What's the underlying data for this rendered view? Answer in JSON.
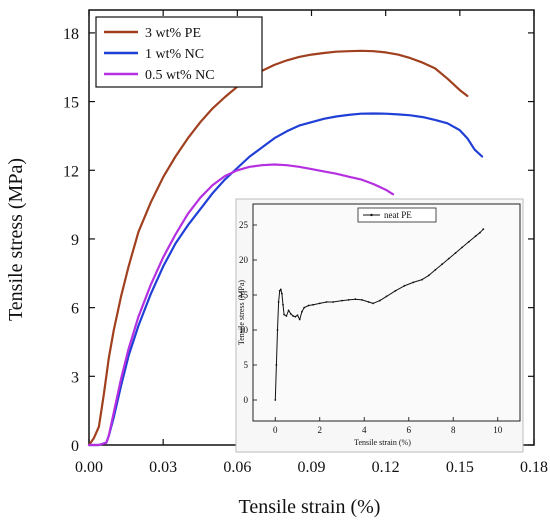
{
  "chart_data": [
    {
      "type": "line",
      "xlabel": "Tensile strain (%)",
      "ylabel": "Tensile stress (MPa)",
      "xlim": [
        0,
        0.18
      ],
      "ylim": [
        0,
        19
      ],
      "xticks": [
        0.0,
        0.03,
        0.06,
        0.09,
        0.12,
        0.15,
        0.18
      ],
      "xtick_labels": [
        "0.00",
        "0.03",
        "0.06",
        "0.09",
        "0.12",
        "0.15",
        "0.18"
      ],
      "yticks": [
        0,
        3,
        6,
        9,
        12,
        15,
        18
      ],
      "ytick_labels": [
        "0",
        "3",
        "6",
        "9",
        "12",
        "15",
        "18"
      ],
      "grid": false,
      "legend": "top-left",
      "series": [
        {
          "name": "3 wt% PE",
          "color": "#a0401e",
          "x": [
            0,
            0.002,
            0.004,
            0.006,
            0.008,
            0.01,
            0.013,
            0.016,
            0.02,
            0.025,
            0.03,
            0.035,
            0.04,
            0.045,
            0.05,
            0.055,
            0.06,
            0.065,
            0.07,
            0.075,
            0.08,
            0.085,
            0.09,
            0.095,
            0.1,
            0.105,
            0.11,
            0.115,
            0.12,
            0.125,
            0.13,
            0.135,
            0.14,
            0.145,
            0.15,
            0.153
          ],
          "y": [
            0,
            0.3,
            0.8,
            2.2,
            3.8,
            5.0,
            6.5,
            7.8,
            9.3,
            10.6,
            11.7,
            12.6,
            13.4,
            14.1,
            14.7,
            15.2,
            15.65,
            16.0,
            16.35,
            16.6,
            16.8,
            16.95,
            17.05,
            17.12,
            17.18,
            17.2,
            17.22,
            17.2,
            17.15,
            17.05,
            16.9,
            16.7,
            16.45,
            16.0,
            15.5,
            15.25
          ]
        },
        {
          "name": "1 wt% NC",
          "color": "#1f3fd6",
          "x": [
            0,
            0.004,
            0.007,
            0.008,
            0.01,
            0.013,
            0.016,
            0.02,
            0.025,
            0.03,
            0.035,
            0.04,
            0.045,
            0.05,
            0.055,
            0.06,
            0.065,
            0.07,
            0.075,
            0.08,
            0.085,
            0.09,
            0.095,
            0.1,
            0.105,
            0.11,
            0.115,
            0.12,
            0.125,
            0.13,
            0.135,
            0.14,
            0.145,
            0.15,
            0.153,
            0.156,
            0.159
          ],
          "y": [
            0,
            0.0,
            0.1,
            0.4,
            1.2,
            2.6,
            3.9,
            5.2,
            6.6,
            7.8,
            8.8,
            9.6,
            10.3,
            11.0,
            11.6,
            12.1,
            12.6,
            13.0,
            13.4,
            13.7,
            13.95,
            14.1,
            14.25,
            14.35,
            14.42,
            14.47,
            14.48,
            14.47,
            14.44,
            14.4,
            14.32,
            14.2,
            14.05,
            13.75,
            13.4,
            12.9,
            12.6
          ]
        },
        {
          "name": "0.5 wt% NC",
          "color": "#b530e0",
          "x": [
            0,
            0.004,
            0.007,
            0.008,
            0.01,
            0.013,
            0.016,
            0.02,
            0.025,
            0.03,
            0.035,
            0.04,
            0.045,
            0.05,
            0.055,
            0.06,
            0.065,
            0.07,
            0.075,
            0.08,
            0.085,
            0.09,
            0.095,
            0.1,
            0.105,
            0.11,
            0.115,
            0.12,
            0.123
          ],
          "y": [
            0,
            0.0,
            0.1,
            0.4,
            1.4,
            2.9,
            4.2,
            5.6,
            7.0,
            8.2,
            9.2,
            10.1,
            10.8,
            11.35,
            11.75,
            12.0,
            12.15,
            12.22,
            12.25,
            12.22,
            12.15,
            12.05,
            11.95,
            11.85,
            11.72,
            11.6,
            11.4,
            11.15,
            10.95
          ]
        }
      ]
    },
    {
      "type": "line",
      "xlabel": "Tensile strain (%)",
      "ylabel": "Tensile stress (MPa)",
      "xlim": [
        -1,
        11
      ],
      "ylim": [
        -3,
        28
      ],
      "xticks": [
        0,
        2,
        4,
        6,
        8,
        10
      ],
      "xtick_labels": [
        "0",
        "2",
        "4",
        "6",
        "8",
        "10"
      ],
      "yticks": [
        0,
        5,
        10,
        15,
        20,
        25
      ],
      "ytick_labels": [
        "0",
        "5",
        "10",
        "15",
        "20",
        "25"
      ],
      "grid": false,
      "legend": "top-center",
      "series": [
        {
          "name": "neat PE",
          "color": "#111111",
          "x": [
            0,
            0.05,
            0.1,
            0.15,
            0.2,
            0.25,
            0.3,
            0.35,
            0.4,
            0.5,
            0.6,
            0.7,
            0.8,
            0.9,
            1.0,
            1.1,
            1.2,
            1.3,
            1.5,
            1.7,
            2.0,
            2.3,
            2.6,
            3.0,
            3.3,
            3.6,
            3.9,
            4.2,
            4.4,
            4.7,
            5.0,
            5.4,
            5.8,
            6.2,
            6.6,
            6.9,
            7.2,
            7.5,
            7.8,
            8.1,
            8.4,
            8.7,
            9.0,
            9.2,
            9.35
          ],
          "y": [
            0,
            5,
            10,
            14,
            15.6,
            15.8,
            15.2,
            13.6,
            12.2,
            12.0,
            12.8,
            12.3,
            12.0,
            11.9,
            12.1,
            11.5,
            12.6,
            13.2,
            13.5,
            13.6,
            13.8,
            14.0,
            14.0,
            14.2,
            14.3,
            14.4,
            14.3,
            14.0,
            13.8,
            14.2,
            14.8,
            15.6,
            16.3,
            16.8,
            17.2,
            17.8,
            18.6,
            19.4,
            20.2,
            21.0,
            21.8,
            22.6,
            23.4,
            23.9,
            24.4
          ]
        }
      ]
    }
  ]
}
